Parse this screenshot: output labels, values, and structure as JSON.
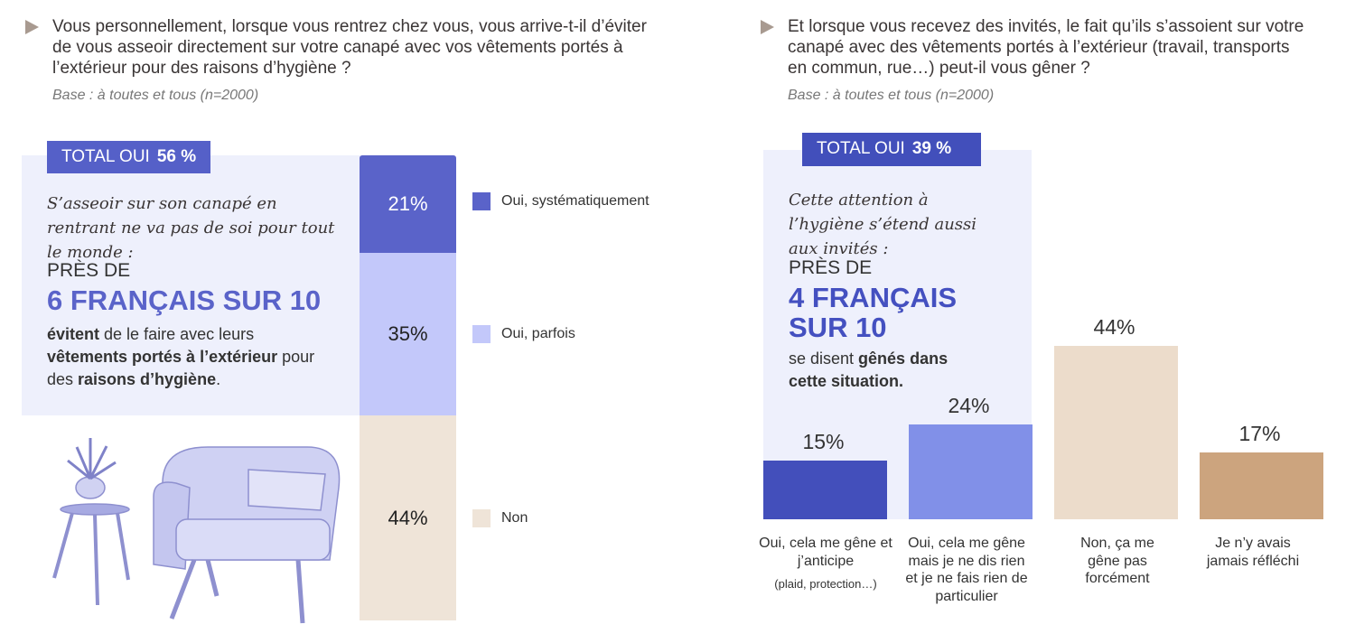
{
  "left": {
    "question": "Vous personnellement, lorsque vous rentrez chez vous, vous arrive-t-il d’éviter de vous asseoir directement sur votre canapé avec vos vêtements portés à l’extérieur pour des raisons d’hygiène ?",
    "base": "Base : à toutes et tous (n=2000)",
    "total_label": "TOTAL OUI",
    "total_value": "56 %",
    "intro": "S’asseoir sur son canapé en rentrant ne va pas de soi pour tout le monde :",
    "pres": "PRÈS DE",
    "headline": "6 FRANÇAIS SUR 10",
    "body": {
      "b1": "évitent",
      "t1": " de le faire avec leurs ",
      "b2": "vêtements portés à l’extérieur",
      "t2": " pour des ",
      "b3": "raisons d’hygiène",
      "t3": "."
    }
  },
  "right": {
    "question": "Et lorsque vous recevez des invités, le fait qu’ils s’assoient sur votre canapé avec des vêtements portés à l’extérieur (travail, transports en commun, rue…) peut-il vous gêner ?",
    "base": "Base : à toutes et tous (n=2000)",
    "total_label": "TOTAL OUI",
    "total_value": "39 %",
    "intro": "Cette attention à l’hygiène s’étend aussi aux invités :",
    "pres": "PRÈS DE",
    "headline": "4 FRANÇAIS SUR 10",
    "body": {
      "t1": "se disent ",
      "b1": "gênés dans cette situation."
    }
  },
  "chart_data": [
    {
      "type": "bar",
      "stacked": true,
      "categories": [
        "Oui, systématiquement",
        "Oui, parfois",
        "Non"
      ],
      "values": [
        21,
        35,
        44
      ],
      "labels": [
        "21%",
        "35%",
        "44%"
      ],
      "colors": [
        "#5a63c9",
        "#c3c8fa",
        "#efe4d8"
      ],
      "legend": "right"
    },
    {
      "type": "bar",
      "categories": [
        "Oui, cela me gêne et j’anticipe",
        "Oui, cela me gêne mais je ne dis rien et je ne fais rien de particulier",
        "Non, ça me gêne pas forcément",
        "Je n’y avais jamais réfléchi"
      ],
      "notes": [
        "(plaid, protection…)",
        "",
        "",
        ""
      ],
      "values": [
        15,
        24,
        44,
        17
      ],
      "labels": [
        "15%",
        "24%",
        "44%",
        "17%"
      ],
      "colors": [
        "#434fbb",
        "#8190e8",
        "#ecdccb",
        "#cca47e"
      ],
      "ylim": [
        0,
        44
      ]
    }
  ]
}
